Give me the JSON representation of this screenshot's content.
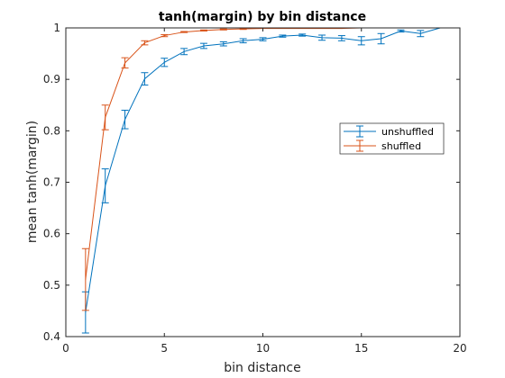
{
  "chart_data": {
    "type": "line",
    "title": "tanh(margin) by bin distance",
    "xlabel": "bin distance",
    "ylabel": "mean tanh(margin)",
    "xlim": [
      0,
      20
    ],
    "ylim": [
      0.4,
      1.0
    ],
    "xticks": [
      0,
      5,
      10,
      15,
      20
    ],
    "yticks": [
      0.4,
      0.5,
      0.6,
      0.7,
      0.8,
      0.9,
      1.0
    ],
    "xtick_labels": [
      "0",
      "5",
      "10",
      "15",
      "20"
    ],
    "ytick_labels": [
      "0.4",
      "0.5",
      "0.6",
      "0.7",
      "0.8",
      "0.9",
      "1"
    ],
    "grid": false,
    "legend_position": "right-middle",
    "error_bars": true,
    "series": [
      {
        "name": "unshuffled",
        "color": "#0072BD",
        "x": [
          1,
          2,
          3,
          4,
          5,
          6,
          7,
          8,
          9,
          10,
          11,
          12,
          13,
          14,
          15,
          16,
          17,
          18,
          19
        ],
        "y": [
          0.447,
          0.693,
          0.822,
          0.901,
          0.933,
          0.954,
          0.965,
          0.969,
          0.975,
          0.978,
          0.984,
          0.986,
          0.981,
          0.98,
          0.975,
          0.979,
          0.994,
          0.989,
          1.0
        ],
        "err": [
          0.04,
          0.033,
          0.018,
          0.012,
          0.008,
          0.006,
          0.005,
          0.004,
          0.004,
          0.003,
          0.002,
          0.002,
          0.005,
          0.005,
          0.008,
          0.01,
          0.002,
          0.006,
          0.0
        ]
      },
      {
        "name": "shuffled",
        "color": "#D95319",
        "x": [
          1,
          2,
          3,
          4,
          5,
          6,
          7,
          8,
          9,
          10,
          11,
          12,
          13,
          14,
          15,
          16,
          17,
          18,
          19
        ],
        "y": [
          0.511,
          0.826,
          0.932,
          0.971,
          0.985,
          0.992,
          0.995,
          0.997,
          0.998,
          0.999,
          0.999,
          0.999,
          0.999,
          0.999,
          1.0,
          1.0,
          1.0,
          1.0,
          1.0
        ],
        "err": [
          0.06,
          0.024,
          0.01,
          0.004,
          0.002,
          0.001,
          0.001,
          0.001,
          0.001,
          0.0,
          0.0,
          0.0,
          0.0,
          0.0,
          0.0,
          0.0,
          0.0,
          0.0,
          0.0
        ]
      }
    ]
  }
}
